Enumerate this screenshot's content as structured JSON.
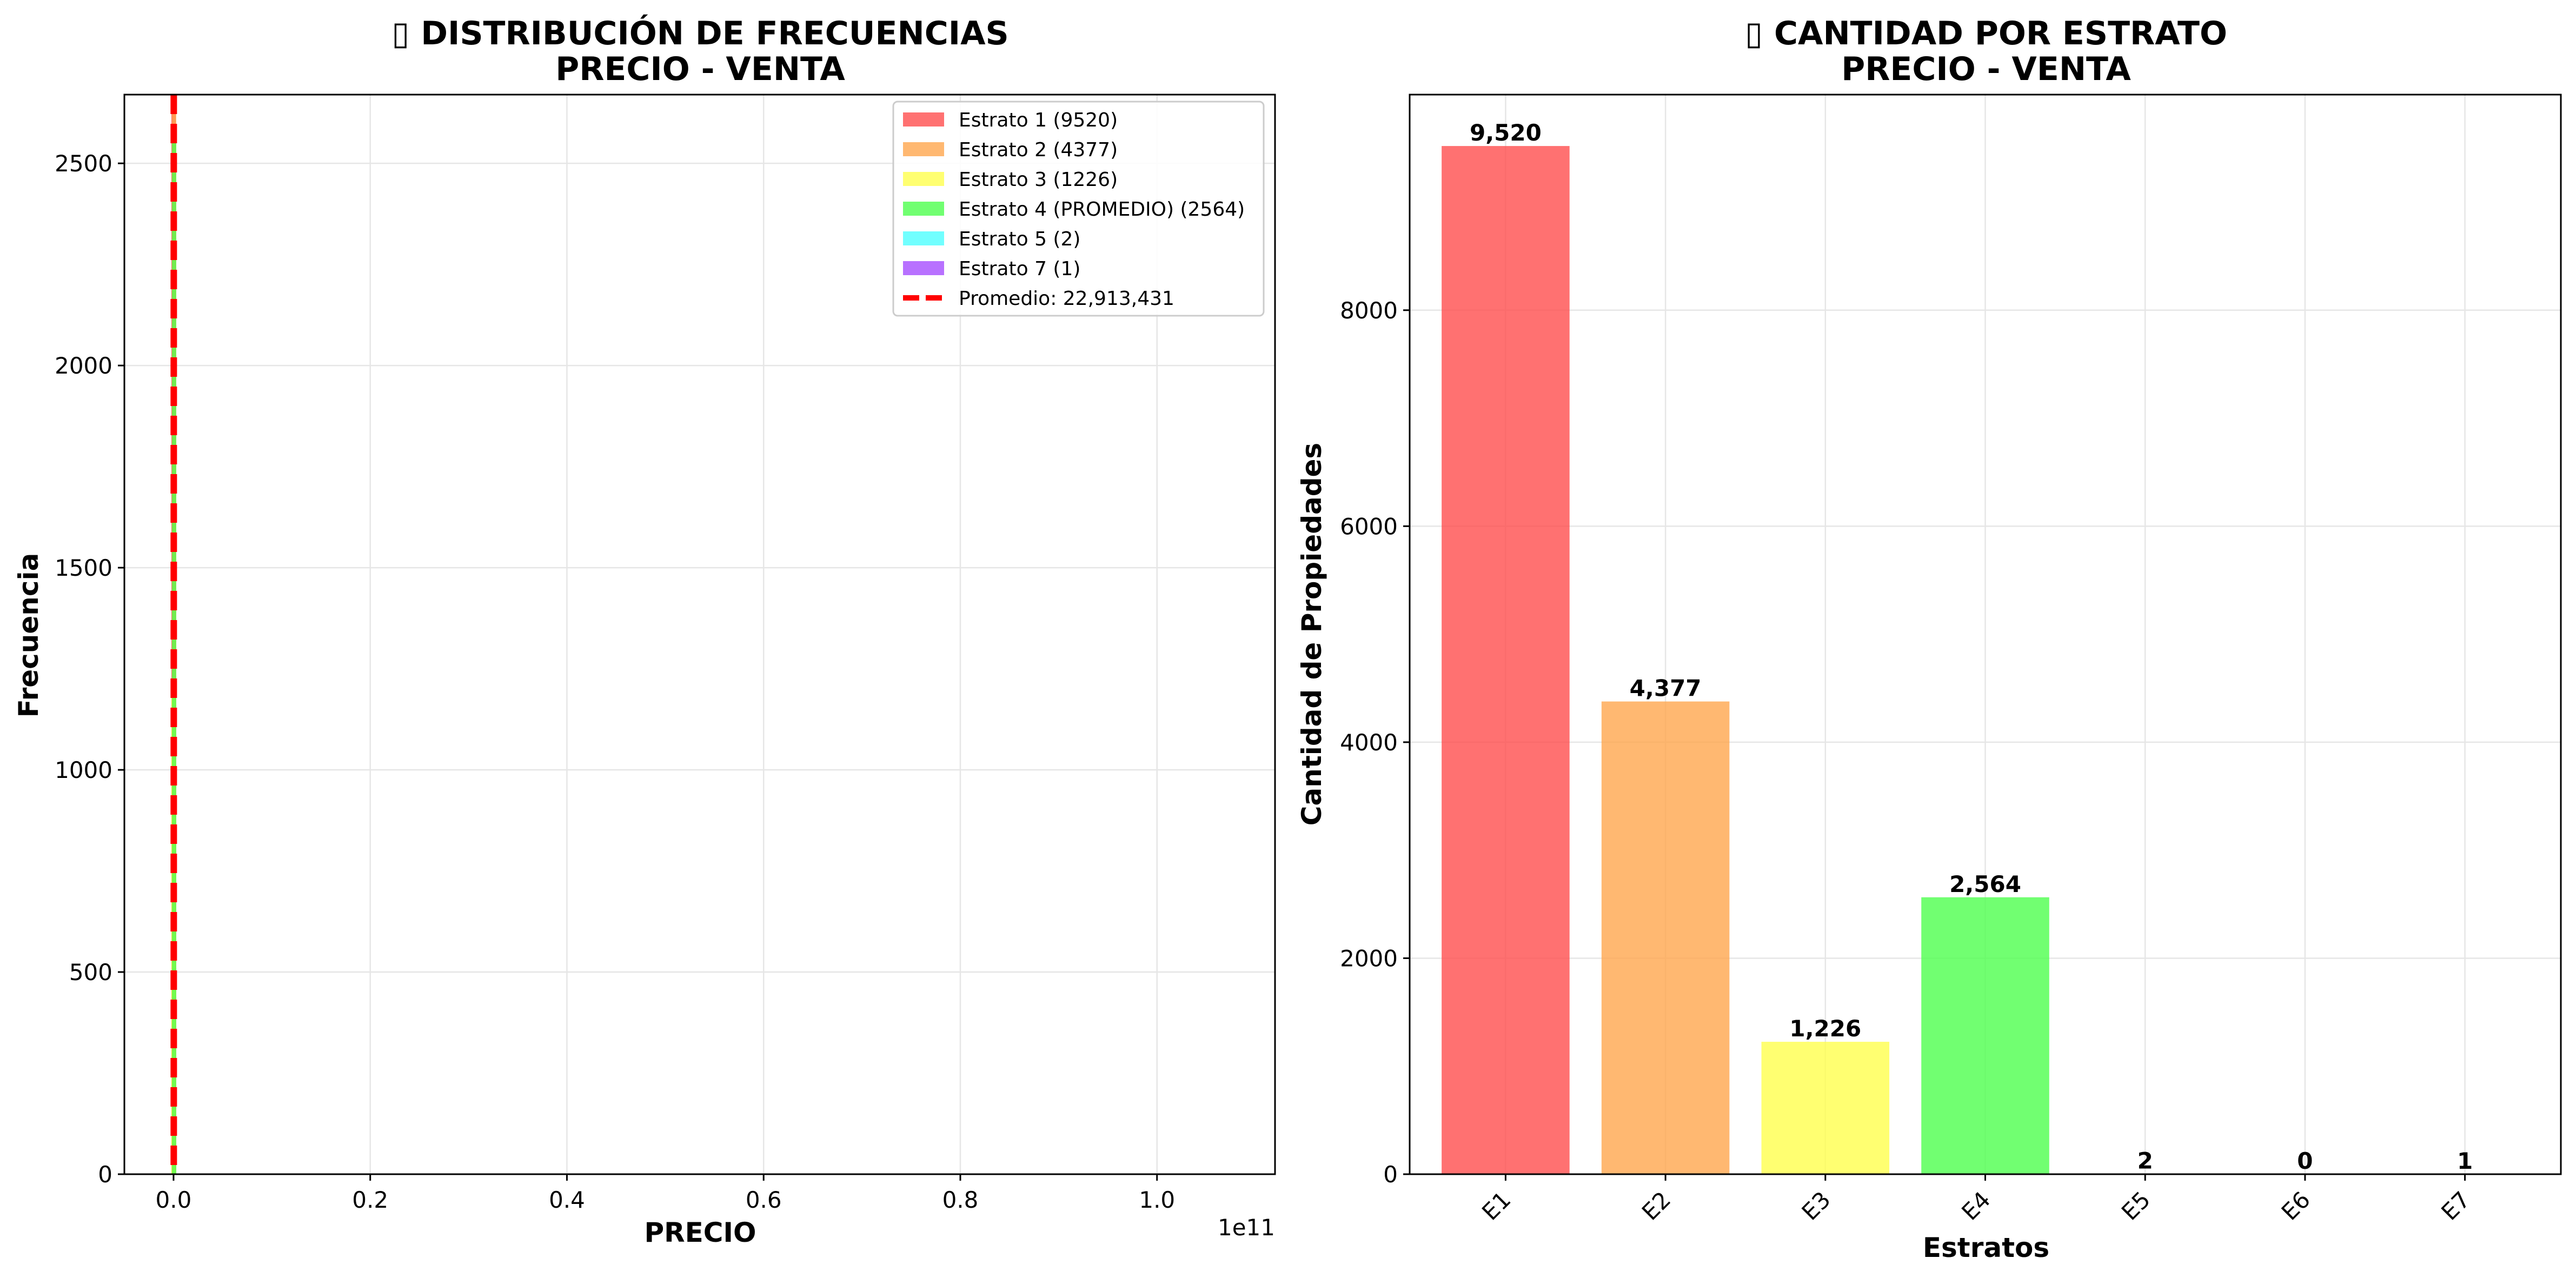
{
  "chart_data": [
    {
      "type": "histogram",
      "title_icon": "▯",
      "title_line1": "DISTRIBUCIÓN DE FRECUENCIAS",
      "title_line2": "PRECIO - VENTA",
      "xlabel": "PRECIO",
      "ylabel": "Frecuencia",
      "x_offset_label": "1e11",
      "xlim": [
        -0.05,
        1.12
      ],
      "ylim": [
        0,
        2670
      ],
      "x_ticks": [
        0.0,
        0.2,
        0.4,
        0.6,
        0.8,
        1.0
      ],
      "x_tick_labels": [
        "0.0",
        "0.2",
        "0.4",
        "0.6",
        "0.8",
        "1.0"
      ],
      "y_ticks": [
        0,
        500,
        1000,
        1500,
        2000,
        2500
      ],
      "y_tick_labels": [
        "0",
        "500",
        "1000",
        "1500",
        "2000",
        "2500"
      ],
      "grid": true,
      "legend_position": "top-right",
      "series": [
        {
          "name": "Estrato 1 (9520)",
          "color": "#ff4d4d",
          "count": 9520
        },
        {
          "name": "Estrato 2 (4377)",
          "color": "#ffa64d",
          "count": 4377
        },
        {
          "name": "Estrato 3 (1226)",
          "color": "#ffff4d",
          "count": 1226
        },
        {
          "name": "Estrato 4 (PROMEDIO) (2564)",
          "color": "#4dff4d",
          "count": 2564
        },
        {
          "name": "Estrato 5 (2)",
          "color": "#4dffff",
          "count": 2
        },
        {
          "name": "Estrato 7 (1)",
          "color": "#a64dff",
          "count": 1
        }
      ],
      "mean_line": {
        "name": "Promedio: 22,913,431",
        "value": 0.000229,
        "color": "#ff0000",
        "style": "dashed"
      }
    },
    {
      "type": "bar",
      "title_icon": "▯",
      "title_line1": "CANTIDAD POR ESTRATO",
      "title_line2": "PRECIO - VENTA",
      "xlabel": "Estratos",
      "ylabel": "Cantidad de Propiedades",
      "ylim": [
        0,
        9996
      ],
      "y_ticks": [
        0,
        2000,
        4000,
        6000,
        8000
      ],
      "y_tick_labels": [
        "0",
        "2000",
        "4000",
        "6000",
        "8000"
      ],
      "grid": true,
      "categories": [
        "E1",
        "E2",
        "E3",
        "E4",
        "E5",
        "E6",
        "E7"
      ],
      "values": [
        9520,
        4377,
        1226,
        2564,
        2,
        0,
        1
      ],
      "value_labels": [
        "9,520",
        "4,377",
        "1,226",
        "2,564",
        "2",
        "0",
        "1"
      ],
      "colors": [
        "#ff4d4d",
        "#ffa64d",
        "#ffff4d",
        "#4dff4d",
        "#4dffff",
        "#4d4dff",
        "#a64dff"
      ]
    }
  ]
}
